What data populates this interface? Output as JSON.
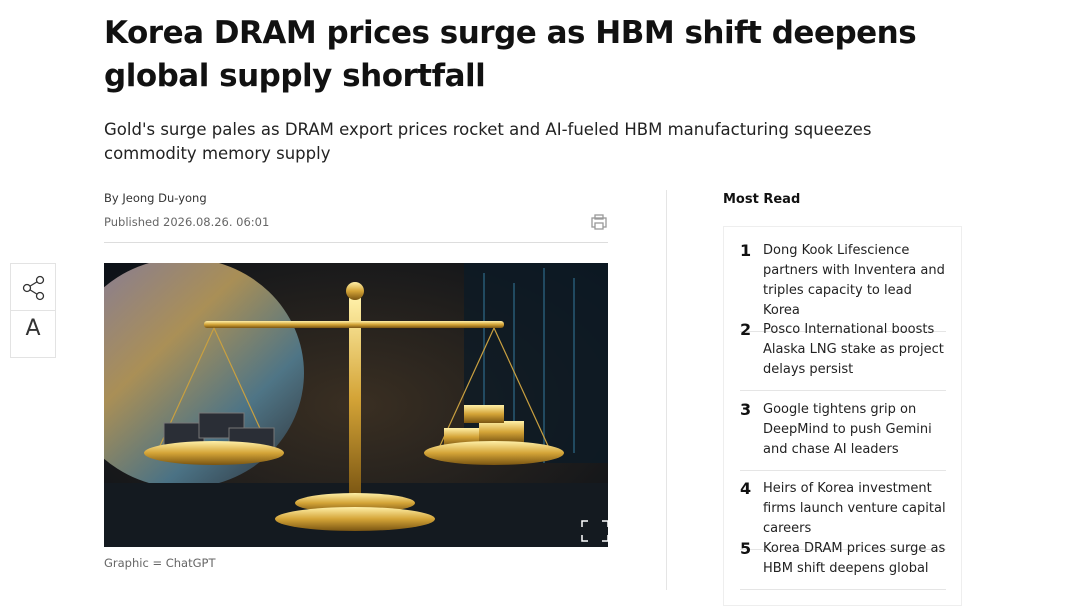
{
  "article": {
    "title": "Korea DRAM prices surge as HBM shift deepens global supply shortfall",
    "subtitle": "Gold's surge pales as DRAM export prices rocket and AI-fueled HBM manufacturing squeezes commodity memory supply",
    "byline": "By Jeong Du-yong",
    "published": "Published 2026.08.26. 06:01",
    "image_caption": "Graphic = ChatGPT"
  },
  "toolbar": {
    "font_button": "A"
  },
  "most_read": {
    "heading": "Most Read",
    "items": [
      {
        "rank": 1,
        "title": "Dong Kook Lifescience partners with Inventera and triples capacity to lead Korea"
      },
      {
        "rank": 2,
        "title": "Posco International boosts Alaska LNG stake as project delays persist"
      },
      {
        "rank": 3,
        "title": "Google tightens grip on DeepMind to push Gemini and chase AI leaders"
      },
      {
        "rank": 4,
        "title": "Heirs of Korea investment firms launch venture capital careers"
      },
      {
        "rank": 5,
        "title": "Korea DRAM prices surge as HBM shift deepens global"
      }
    ]
  }
}
